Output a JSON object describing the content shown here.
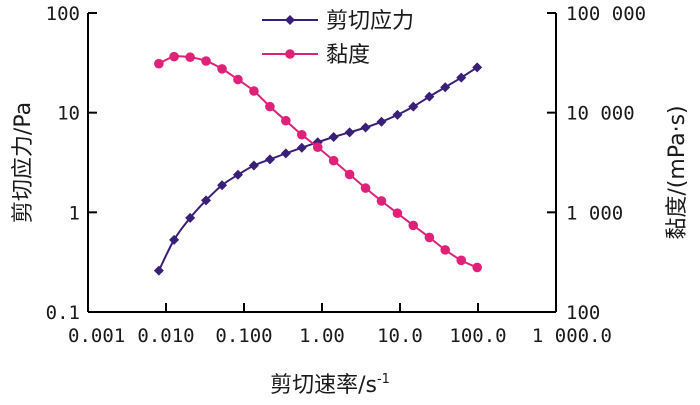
{
  "chart_data": {
    "type": "line",
    "x_scale": "log",
    "y_scale": "log",
    "y2_scale": "log",
    "xlim": [
      0.001,
      1000
    ],
    "ylim": [
      0.1,
      100
    ],
    "y2lim": [
      100,
      100000
    ],
    "xlabel": "剪切速率/s",
    "xlabel_sup": "-1",
    "ylabel": "剪切应力/Pa",
    "y2label": "黏度/(mPa·s)",
    "x_tick_labels": [
      "0.001",
      "0.010",
      "0.100",
      "1.00",
      "10.0",
      "100.0",
      "1 000.0"
    ],
    "y_tick_labels": [
      "0.1",
      "1",
      "10",
      "100"
    ],
    "y2_tick_labels": [
      "100",
      "1 000",
      "10 000",
      "100 000"
    ],
    "legend_position": "top-center",
    "series": [
      {
        "name": "剪切应力",
        "axis": "left",
        "color": "#3a1f78",
        "marker": "diamond",
        "x": [
          0.0081,
          0.0127,
          0.0204,
          0.0326,
          0.0523,
          0.0837,
          0.134,
          0.215,
          0.344,
          0.551,
          0.882,
          1.41,
          2.26,
          3.62,
          5.79,
          9.27,
          14.8,
          23.8,
          38.0,
          61.0,
          97.6
        ],
        "values": [
          0.26,
          0.53,
          0.88,
          1.32,
          1.87,
          2.38,
          2.95,
          3.4,
          3.9,
          4.45,
          5.05,
          5.7,
          6.35,
          7.1,
          8.1,
          9.5,
          11.5,
          14.5,
          18.0,
          22.5,
          28.5
        ]
      },
      {
        "name": "黏度",
        "axis": "right",
        "color": "#e0217a",
        "marker": "circle",
        "x": [
          0.0081,
          0.0127,
          0.0204,
          0.0326,
          0.0523,
          0.0837,
          0.134,
          0.215,
          0.344,
          0.551,
          0.882,
          1.41,
          2.26,
          3.62,
          5.79,
          9.27,
          14.8,
          23.8,
          38.0,
          61.0,
          97.6
        ],
        "values": [
          31000,
          36500,
          36000,
          33000,
          27500,
          21500,
          16500,
          11500,
          8300,
          6000,
          4500,
          3300,
          2400,
          1750,
          1300,
          980,
          740,
          560,
          420,
          330,
          280
        ]
      }
    ]
  }
}
